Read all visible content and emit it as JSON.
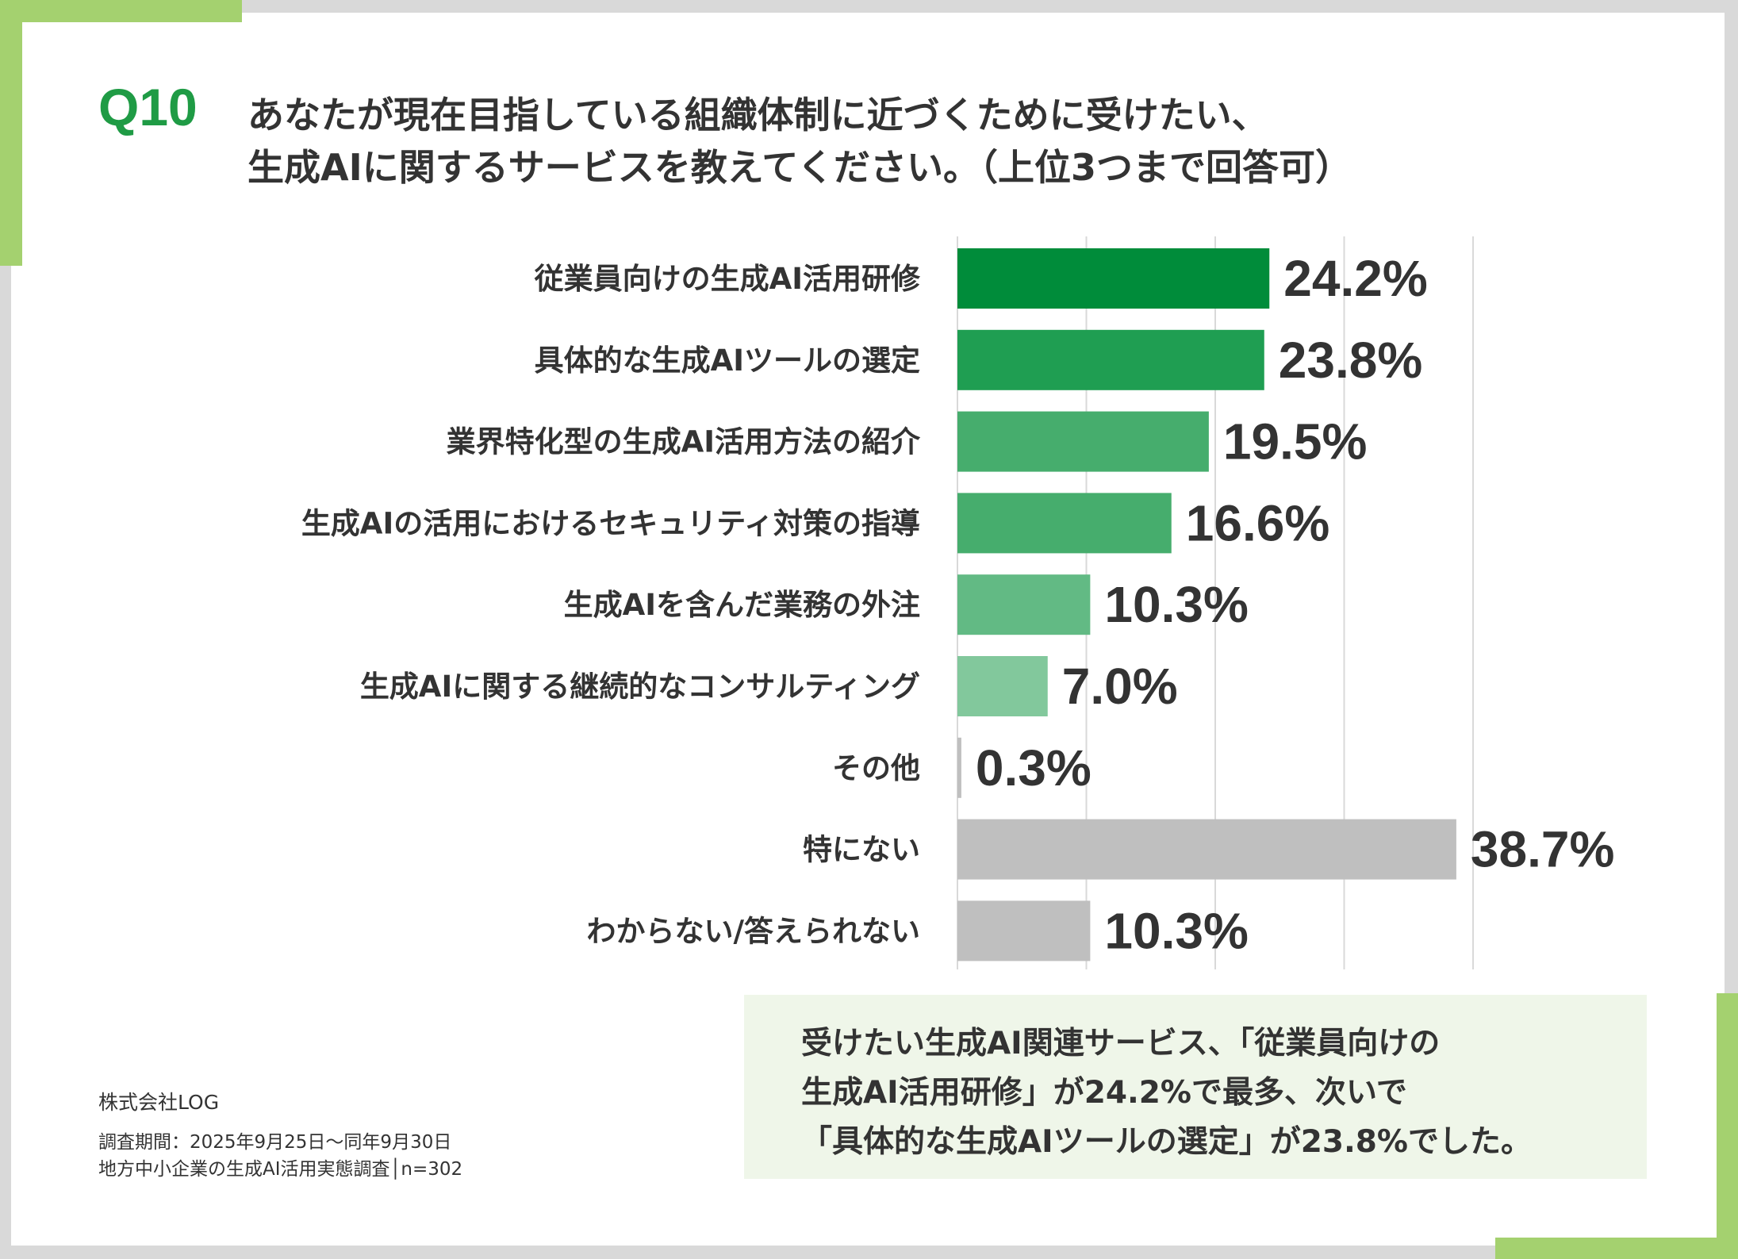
{
  "question": {
    "number": "Q10",
    "line1": "あなたが現在目指している組織体制に近づくために受けたい、",
    "line2": "生成AIに関するサービスを教えてください。（上位3つまで回答可）"
  },
  "chart_data": {
    "type": "bar",
    "orientation": "horizontal",
    "categories": [
      "従業員向けの生成AI活用研修",
      "具体的な生成AIツールの選定",
      "業界特化型の生成AI活用方法の紹介",
      "生成AIの活用におけるセキュリティ対策の指導",
      "生成AIを含んだ業務の外注",
      "生成AIに関する継続的なコンサルティング",
      "その他",
      "特にない",
      "わからない/答えられない"
    ],
    "values": [
      24.2,
      23.8,
      19.5,
      16.6,
      10.3,
      7.0,
      0.3,
      38.7,
      10.3
    ],
    "value_labels": [
      "24.2%",
      "23.8%",
      "19.5%",
      "16.6%",
      "10.3%",
      "7.0%",
      "0.3%",
      "38.7%",
      "10.3%"
    ],
    "colors": [
      "#008c3a",
      "#1f9e52",
      "#46ad6d",
      "#46ad6d",
      "#62ba84",
      "#82c89c",
      "#bfbfbf",
      "#bfbfbf",
      "#bfbfbf"
    ],
    "xlim": [
      0,
      40
    ],
    "grid": true,
    "legend": "none"
  },
  "note": {
    "line1": "受けたい生成AI関連サービス、「従業員向けの",
    "line2": "生成AI活用研修」が24.2%で最多、次いで",
    "line3": "「具体的な生成AIツールの選定」が23.8%でした。"
  },
  "footer": {
    "company": "株式会社LOG",
    "period": "調査期間：2025年9月25日～同年9月30日",
    "survey": "地方中小企業の生成AI活用実態調査│n=302"
  },
  "colors": {
    "accent_green": "#a4d16f",
    "title_green": "#1f9b45",
    "note_bg": "#eff6e9"
  }
}
